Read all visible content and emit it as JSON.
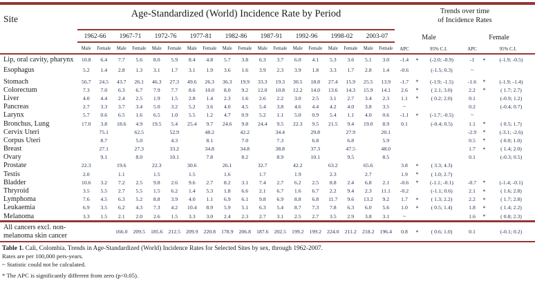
{
  "table": {
    "site_header": "Site",
    "title": "Age-Standardized (World) Incidence Rate by Period",
    "trends_line1": "Trends over time",
    "trends_line2": "of Incidence Rates",
    "periods": [
      "1962-66",
      "1967-71",
      "1972-76",
      "1977-81",
      "1982-86",
      "1987-91",
      "1992-96",
      "1998-02",
      "2003-07"
    ],
    "sex_labels": [
      "Male",
      "Female"
    ],
    "trend_groups": [
      {
        "label": "Male",
        "apc": "APC",
        "ci": "95% C.I."
      },
      {
        "label": "Female",
        "apc": "APC",
        "ci": "95% C.I."
      }
    ],
    "rows": [
      {
        "site": "Lip, oral cavity, pharynx",
        "values": [
          "10.8",
          "6.4",
          "7.7",
          "5.6",
          "8.0",
          "5.9",
          "8.4",
          "4.8",
          "5.7",
          "3.8",
          "6.3",
          "3.7",
          "6.0",
          "4.1",
          "5.3",
          "3.6",
          "5.1",
          "3.0"
        ],
        "ma": "-1.4",
        "ms": "*",
        "mc": "(-2.0; -0.9)",
        "fa": "-1",
        "fs": "*",
        "fc": "(-1.9; -0.5)"
      },
      {
        "site": "Esophagus",
        "values": [
          "5.2",
          "1.4",
          "2.8",
          "1.3",
          "3.1",
          "1.7",
          "3.1",
          "1.9",
          "3.6",
          "1.6",
          "3.9",
          "2.3",
          "3.9",
          "1.8",
          "3.3",
          "1.7",
          "2.8",
          "1.4"
        ],
        "ma": "-0.6",
        "ms": "",
        "mc": "(-1.5; 0.3)",
        "fa": "~",
        "fs": "",
        "fc": ""
      },
      {
        "site": "Stomach",
        "values": [
          "56.7",
          "24.5",
          "43.7",
          "26.1",
          "46.3",
          "27.3",
          "49.6",
          "26.3",
          "36.3",
          "19.9",
          "33.3",
          "19.3",
          "30.5",
          "18.8",
          "27.4",
          "15.9",
          "25.5",
          "13.9"
        ],
        "ma": "-1.7",
        "ms": "*",
        "mc": "(-1.9; -1.5)",
        "fa": "-1.6",
        "fs": "*",
        "fc": "(-1.9; -1.4)"
      },
      {
        "site": "Colorectum",
        "values": [
          "7.3",
          "7.0",
          "6.3",
          "6.7",
          "7.9",
          "7.7",
          "8.6",
          "10.0",
          "8.0",
          "9.2",
          "12.0",
          "10.8",
          "12.2",
          "14.0",
          "13.6",
          "14.3",
          "15.9",
          "14.1"
        ],
        "ma": "2.6",
        "ms": "*",
        "mc": "( 2.1; 3.0)",
        "fa": "2.2",
        "fs": "*",
        "fc": "( 1.7; 2.7)"
      },
      {
        "site": "Liver",
        "values": [
          "4.0",
          "4.4",
          "2.4",
          "2.5",
          "1.9",
          "1.5",
          "2.8",
          "1.4",
          "2.3",
          "1.6",
          "2.6",
          "2.2",
          "3.0",
          "2.5",
          "3.1",
          "2.7",
          "3.4",
          "2.3"
        ],
        "ma": "1.1",
        "ms": "*",
        "mc": "( 0.2; 2.0)",
        "fa": "0.1",
        "fs": "",
        "fc": "(-0.9; 1.2)"
      },
      {
        "site": "Pancreas",
        "values": [
          "2.7",
          "3.3",
          "3.7",
          "3.4",
          "5.0",
          "3.2",
          "5.2",
          "3.6",
          "4.0",
          "4.5",
          "5.4",
          "3.8",
          "4.6",
          "4.4",
          "4.2",
          "4.0",
          "3.8",
          "3.5"
        ],
        "ma": "~",
        "ms": "",
        "mc": "",
        "fa": "0.2",
        "fs": "",
        "fc": "(-0.4; 0.7)"
      },
      {
        "site": "Larynx",
        "values": [
          "5.7",
          "0.6",
          "6.5",
          "1.6",
          "6.5",
          "1.0",
          "5.5",
          "1.2",
          "4.7",
          "0.9",
          "5.2",
          "1.1",
          "5.0",
          "0.9",
          "5.4",
          "1.1",
          "4.0",
          "0.6"
        ],
        "ma": "-1.1",
        "ms": "*",
        "mc": "(-1.7; -0.5)",
        "fa": "~",
        "fs": "",
        "fc": ""
      },
      {
        "site": "Bronchus, Lung",
        "values": [
          "17.0",
          "3.8",
          "18.6",
          "4.9",
          "19.5",
          "5.4",
          "25.4",
          "9.7",
          "24.6",
          "9.8",
          "24.4",
          "9.5",
          "22.3",
          "9.5",
          "21.5",
          "9.4",
          "19.0",
          "8.9"
        ],
        "ma": "0.1",
        "ms": "",
        "mc": "(-0.4; 0.5)",
        "fa": "1.1",
        "fs": "*",
        "fc": "( 0.5; 1.7)"
      },
      {
        "site": "Cervix Uteri",
        "values": [
          "",
          "75.1",
          "",
          "62.5",
          "",
          "52.9",
          "",
          "48.2",
          "",
          "42.2",
          "",
          "34.4",
          "",
          "29.8",
          "",
          "27.9",
          "",
          "20.1"
        ],
        "ma": "",
        "ms": "",
        "mc": "",
        "fa": "-2.9",
        "fs": "*",
        "fc": "(-3.1; -2.6)"
      },
      {
        "site": "Corpus Uteri",
        "values": [
          "",
          "8.7",
          "",
          "5.0",
          "",
          "4.3",
          "",
          "8.1",
          "",
          "7.0",
          "",
          "7.3",
          "",
          "6.8",
          "",
          "6.8",
          "",
          "5.9"
        ],
        "ma": "",
        "ms": "",
        "mc": "",
        "fa": "0.5",
        "fs": "*",
        "fc": "( 0.0; 1.0)"
      },
      {
        "site": "Breast",
        "values": [
          "",
          "27.1",
          "",
          "27.3",
          "",
          "33.2",
          "",
          "34.8",
          "",
          "34.8",
          "",
          "38.8",
          "",
          "37.3",
          "",
          "47.5",
          "",
          "48.0"
        ],
        "ma": "",
        "ms": "",
        "mc": "",
        "fa": "1.7",
        "fs": "*",
        "fc": "( 1.4; 2.0)"
      },
      {
        "site": "Ovary",
        "values": [
          "",
          "9.1",
          "",
          "8.0",
          "",
          "10.1",
          "",
          "7.8",
          "",
          "8.2",
          "",
          "8.9",
          "",
          "10.1",
          "",
          "9.5",
          "",
          "8.5"
        ],
        "ma": "",
        "ms": "",
        "mc": "",
        "fa": "0.1",
        "fs": "",
        "fc": "(-0.3; 0.5)"
      },
      {
        "site": "Prostate",
        "values": [
          "22.3",
          "",
          "19.6",
          "",
          "22.3",
          "",
          "30.6",
          "",
          "26.1",
          "",
          "32.7",
          "",
          "42.2",
          "",
          "63.2",
          "",
          "65.6",
          ""
        ],
        "ma": "3.8",
        "ms": "*",
        "mc": "( 3.3; 4.3)",
        "fa": "",
        "fs": "",
        "fc": ""
      },
      {
        "site": "Testis",
        "values": [
          "2.0",
          "",
          "1.1",
          "",
          "1.5",
          "",
          "1.5",
          "",
          "1.6",
          "",
          "1.7",
          "",
          "1.9",
          "",
          "2.3",
          "",
          "2.7",
          ""
        ],
        "ma": "1.9",
        "ms": "*",
        "mc": "( 1.0; 2.7)",
        "fa": "",
        "fs": "",
        "fc": ""
      },
      {
        "site": "Bladder",
        "values": [
          "10.6",
          "3.2",
          "7.2",
          "2.5",
          "9.8",
          "2.6",
          "9.6",
          "2.7",
          "8.2",
          "3.1",
          "7.4",
          "2.7",
          "6.2",
          "2.5",
          "8.8",
          "2.4",
          "6.8",
          "2.1"
        ],
        "ma": "-0.6",
        "ms": "*",
        "mc": "(-1.1; -0.1)",
        "fa": "-0.7",
        "fs": "*",
        "fc": "(-1.4; -0.1)"
      },
      {
        "site": "Thryroid",
        "values": [
          "3.5",
          "5.5",
          "2.7",
          "5.5",
          "1.5",
          "6.2",
          "1.4",
          "5.3",
          "1.8",
          "6.6",
          "2.1",
          "6.7",
          "1.6",
          "6.7",
          "2.2",
          "9.4",
          "2.3",
          "11.1"
        ],
        "ma": "-0.2",
        "ms": "",
        "mc": "(-1.1; 0.6)",
        "fa": "2.1",
        "fs": "*",
        "fc": "( 1.6; 2.8)"
      },
      {
        "site": "Lymphoma",
        "values": [
          "7.6",
          "4.5",
          "6.3",
          "5.2",
          "8.8",
          "3.9",
          "4.0",
          "1.1",
          "6.9",
          "6.1",
          "9.8",
          "6.9",
          "8.8",
          "6.8",
          "11.7",
          "9.6",
          "13.2",
          "9.2"
        ],
        "ma": "1.7",
        "ms": "*",
        "mc": "( 1.3; 2.2)",
        "fa": "2.2",
        "fs": "*",
        "fc": "( 1.7; 2.8)"
      },
      {
        "site": "Leukaemia",
        "values": [
          "6.9",
          "3.5",
          "6.2",
          "4.3",
          "7.3",
          "4.2",
          "10.4",
          "8.9",
          "5.9",
          "5.1",
          "6.3",
          "5.4",
          "8.7",
          "7.3",
          "7.8",
          "6.3",
          "6.0",
          "5.6"
        ],
        "ma": "1.0",
        "ms": "*",
        "mc": "( 0.5; 1.4)",
        "fa": "1.8",
        "fs": "*",
        "fc": "( 1.4; 2.2)"
      },
      {
        "site": "Melanoma",
        "values": [
          "3.3",
          "1.5",
          "2.1",
          "2.0",
          "2.6",
          "1.5",
          "3.3",
          "3.0",
          "2.4",
          "2.3",
          "2.7",
          "3.1",
          "2.5",
          "2.7",
          "3.5",
          "2.9",
          "3.8",
          "3.1"
        ],
        "ma": "~",
        "ms": "",
        "mc": "",
        "fa": "1.6",
        "fs": "*",
        "fc": "( 0.8; 2.3)"
      },
      {
        "site": "All cancers excl. non-melanoma skin cancer",
        "total": true,
        "values": [
          "",
          "",
          "166.0",
          "209.5",
          "185.6",
          "212.5",
          "209.9",
          "220.8",
          "178.9",
          "206.8",
          "187.6",
          "202.5",
          "199.2",
          "199.2",
          "224.0",
          "211.2",
          "218.2",
          "196.4"
        ],
        "ma": "0.8",
        "ms": "*",
        "mc": "( 0.6; 1.0)",
        "fa": "0.1",
        "fs": "",
        "fc": "(-0.1; 0.2)"
      }
    ]
  },
  "caption": {
    "bold": "Table 1.",
    "text": " Cali, Colombia. Trends in Age-Standardized (World) Incidence Rates for Selected Sites by sex, through 1962-2007."
  },
  "notes": [
    "Rates are per 100,000 pers-years.",
    "~ Statistic could not be calculated.",
    "* The APC is significantly different from zero (p<0.05)."
  ],
  "colors": {
    "rule": "#943634",
    "number_text": "#223050"
  }
}
